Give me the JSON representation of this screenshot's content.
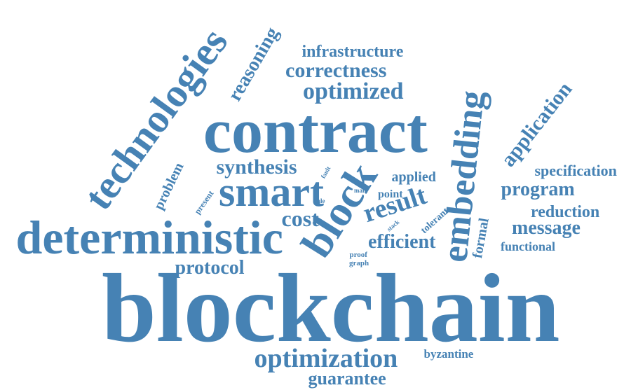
{
  "color": "#4682b4",
  "words": [
    {
      "id": "blockchain",
      "text": "blockchain"
    },
    {
      "id": "contract",
      "text": "contract"
    },
    {
      "id": "deterministic",
      "text": "deterministic"
    },
    {
      "id": "technologies",
      "text": "technologies"
    },
    {
      "id": "smart",
      "text": "smart"
    },
    {
      "id": "block",
      "text": "block"
    },
    {
      "id": "embedding",
      "text": "embedding"
    },
    {
      "id": "optimization",
      "text": "optimization"
    },
    {
      "id": "result",
      "text": "result"
    },
    {
      "id": "application",
      "text": "application"
    },
    {
      "id": "optimized",
      "text": "optimized"
    },
    {
      "id": "program",
      "text": "program"
    },
    {
      "id": "message",
      "text": "message"
    },
    {
      "id": "correctness",
      "text": "correctness"
    },
    {
      "id": "synthesis",
      "text": "synthesis"
    },
    {
      "id": "protocol",
      "text": "protocol"
    },
    {
      "id": "efficient",
      "text": "efficient"
    },
    {
      "id": "infrastructure",
      "text": "infrastructure"
    },
    {
      "id": "reasoning",
      "text": "reasoning"
    },
    {
      "id": "guarantee",
      "text": "guarantee"
    },
    {
      "id": "reduction",
      "text": "reduction"
    },
    {
      "id": "cost",
      "text": "cost"
    },
    {
      "id": "specification",
      "text": "specification"
    },
    {
      "id": "problem",
      "text": "problem"
    },
    {
      "id": "formal",
      "text": "formal"
    },
    {
      "id": "applied",
      "text": "applied"
    },
    {
      "id": "functional",
      "text": "functional"
    },
    {
      "id": "byzantine",
      "text": "byzantine"
    },
    {
      "id": "point",
      "text": "point"
    },
    {
      "id": "tolerant",
      "text": "tolerant"
    },
    {
      "id": "present",
      "text": "present"
    },
    {
      "id": "proof",
      "text": "proof"
    },
    {
      "id": "graph",
      "text": "graph"
    },
    {
      "id": "main",
      "text": "main"
    },
    {
      "id": "rule",
      "text": "rule"
    },
    {
      "id": "stack",
      "text": "stack"
    },
    {
      "id": "fault",
      "text": "fault"
    }
  ]
}
